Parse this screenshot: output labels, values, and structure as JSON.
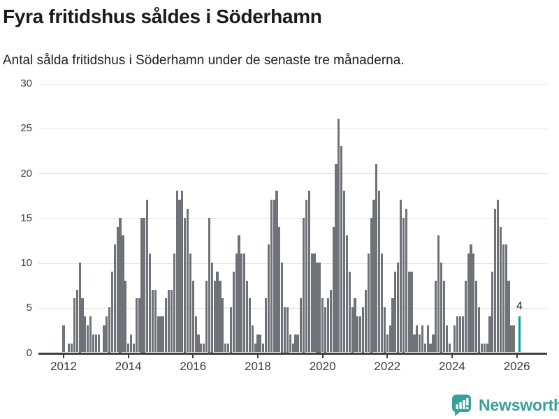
{
  "header": {
    "title": "Fyra fritidshus såldes i Söderhamn",
    "subtitle": "Antal sålda fritidshus i Söderhamn under de senaste tre månaderna."
  },
  "colors": {
    "bar": "#6f7277",
    "highlight": "#00a3a4",
    "grid": "#e3e3e3",
    "axis": "#3f3f3f",
    "tick_label": "#3d3d3d",
    "value_label": "#2b2b2b",
    "logo": "#37a09a"
  },
  "chart_data": {
    "type": "bar",
    "title": "Fyra fritidshus såldes i Söderhamn",
    "subtitle": "Antal sålda fritidshus i Söderhamn under de senaste tre månaderna.",
    "start_month": "2012-01",
    "end_month": "2026-02",
    "ylim": [
      0,
      30
    ],
    "y_ticks": [
      0,
      5,
      10,
      15,
      20,
      25,
      30
    ],
    "x_tick_labels": [
      "2012",
      "2014",
      "2016",
      "2018",
      "2020",
      "2022",
      "2024",
      "2026"
    ],
    "grid": true,
    "values": [
      3,
      0,
      1,
      1,
      6,
      7,
      10,
      6,
      4,
      3,
      4,
      2,
      2,
      2,
      0,
      3,
      4,
      5,
      9,
      12,
      14,
      15,
      13,
      8,
      1,
      2,
      1,
      6,
      6,
      15,
      15,
      17,
      11,
      7,
      7,
      4,
      4,
      4,
      6,
      7,
      7,
      11,
      18,
      17,
      18,
      15,
      16,
      11,
      8,
      4,
      2,
      1,
      1,
      8,
      15,
      10,
      8,
      9,
      8,
      6,
      1,
      1,
      5,
      9,
      11,
      13,
      11,
      11,
      8,
      6,
      3,
      1,
      2,
      2,
      1,
      6,
      12,
      17,
      17,
      18,
      14,
      10,
      5,
      5,
      2,
      1,
      2,
      2,
      6,
      15,
      17,
      18,
      11,
      11,
      10,
      10,
      6,
      5,
      6,
      7,
      14,
      21,
      26,
      23,
      18,
      13,
      9,
      5,
      6,
      4,
      4,
      5,
      7,
      11,
      15,
      17,
      21,
      18,
      11,
      5,
      2,
      3,
      6,
      9,
      10,
      17,
      15,
      16,
      9,
      9,
      2,
      3,
      2,
      3,
      1,
      3,
      1,
      2,
      8,
      13,
      10,
      8,
      3,
      1,
      0,
      3,
      4,
      4,
      4,
      8,
      11,
      12,
      11,
      8,
      5,
      1,
      1,
      1,
      4,
      9,
      16,
      17,
      14,
      12,
      12,
      8,
      3,
      3,
      0,
      4
    ],
    "highlight_last": true,
    "last_value_label": "4"
  },
  "footer": {
    "brand": "Newsworthy"
  }
}
